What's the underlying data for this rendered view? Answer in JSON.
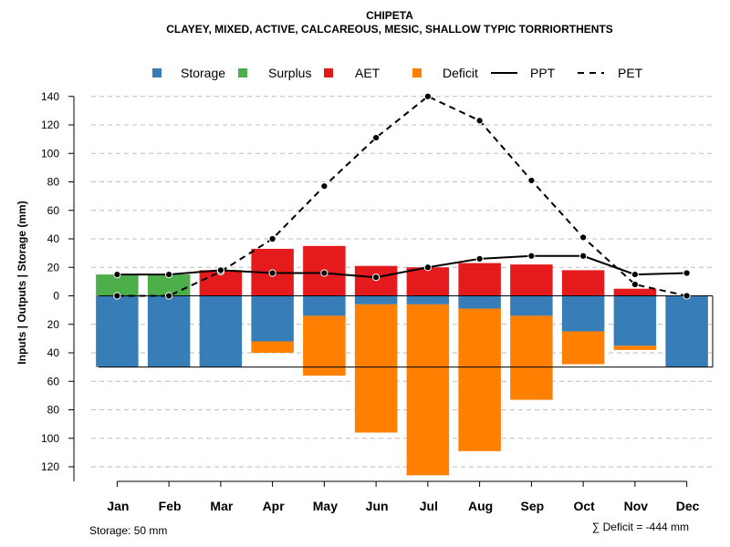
{
  "chart_data": {
    "type": "bar",
    "title": "CHIPETA",
    "subtitle": "CLAYEY, MIXED, ACTIVE, CALCAREOUS, MESIC, SHALLOW TYPIC TORRIORTHENTS",
    "ylabel": "Inputs | Outputs | Storage    (mm)",
    "xlabel": "",
    "ylim": [
      -130,
      145
    ],
    "yticks": [
      140,
      120,
      100,
      80,
      60,
      40,
      20,
      0,
      -20,
      -40,
      -60,
      -80,
      -100,
      -120
    ],
    "ytick_labels": [
      "140",
      "120",
      "100",
      "80",
      "60",
      "40",
      "20",
      "0",
      "20",
      "40",
      "60",
      "80",
      "100",
      "120"
    ],
    "grid": true,
    "legend_position": "top",
    "legend": [
      {
        "label": "Storage",
        "kind": "box",
        "color": "#377EB8"
      },
      {
        "label": "Surplus",
        "kind": "box",
        "color": "#4DAF4A"
      },
      {
        "label": "AET",
        "kind": "box",
        "color": "#E41A1C"
      },
      {
        "label": "Deficit",
        "kind": "box",
        "color": "#FF7F00"
      },
      {
        "label": "PPT",
        "kind": "solid-line",
        "color": "#000000"
      },
      {
        "label": "PET",
        "kind": "dashed-line",
        "color": "#000000"
      }
    ],
    "categories": [
      "Jan",
      "Feb",
      "Mar",
      "Apr",
      "May",
      "Jun",
      "Jul",
      "Aug",
      "Sep",
      "Oct",
      "Nov",
      "Dec"
    ],
    "series": [
      {
        "name": "Surplus",
        "color": "#4DAF4A",
        "values": [
          15,
          15,
          0,
          0,
          0,
          0,
          0,
          0,
          0,
          0,
          0,
          0
        ]
      },
      {
        "name": "AET",
        "color": "#E41A1C",
        "values": [
          0,
          0,
          18,
          33,
          35,
          21,
          20,
          23,
          22,
          18,
          5,
          0
        ]
      },
      {
        "name": "Storage",
        "color": "#377EB8",
        "values": [
          50,
          50,
          50,
          32,
          14,
          6,
          6,
          9,
          14,
          25,
          35,
          50
        ]
      },
      {
        "name": "Deficit",
        "color": "#FF7F00",
        "values": [
          0,
          0,
          0,
          8,
          42,
          90,
          120,
          100,
          59,
          23,
          3,
          0
        ]
      },
      {
        "name": "PPT",
        "color": "#000000",
        "style": "solid",
        "values": [
          15,
          15,
          18,
          16,
          16,
          13,
          20,
          26,
          28,
          28,
          15,
          16
        ]
      },
      {
        "name": "PET",
        "color": "#000000",
        "style": "dashed",
        "values": [
          0,
          0,
          17,
          40,
          77,
          111,
          140,
          123,
          81,
          41,
          8,
          0
        ]
      }
    ],
    "storage_capacity_line": 50,
    "annotations": {
      "storage": "Storage: 50 mm",
      "deficit": "∑ Deficit = -444 mm"
    }
  }
}
